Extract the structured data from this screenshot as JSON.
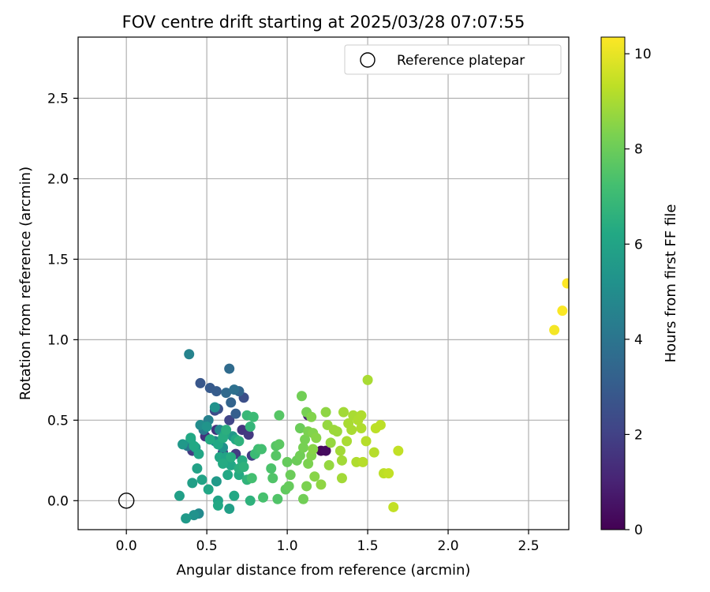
{
  "chart_data": {
    "type": "scatter",
    "title": "FOV centre drift starting at 2025/03/28 07:07:55",
    "xlabel": "Angular distance from reference (arcmin)",
    "ylabel": "Rotation from reference (arcmin)",
    "xlim": [
      -0.3,
      2.75
    ],
    "ylim": [
      -0.18,
      2.88
    ],
    "xticks": [
      0.0,
      0.5,
      1.0,
      1.5,
      2.0,
      2.5
    ],
    "yticks": [
      0.0,
      0.5,
      1.0,
      1.5,
      2.0,
      2.5
    ],
    "grid": true,
    "legend": {
      "position": "upper-right",
      "entries": [
        "Reference platepar"
      ]
    },
    "reference_point": {
      "x": 0.0,
      "y": 0.0
    },
    "colorbar": {
      "label": "Hours from first FF file",
      "colormap": "viridis",
      "range": [
        0,
        10.35
      ],
      "ticks": [
        0,
        2,
        4,
        6,
        8,
        10
      ]
    },
    "points": [
      [
        1.21,
        0.31,
        0.2
      ],
      [
        1.24,
        0.31,
        0.3
      ],
      [
        1.13,
        0.53,
        1.0
      ],
      [
        0.56,
        0.44,
        1.5
      ],
      [
        0.49,
        0.4,
        1.5
      ],
      [
        0.72,
        0.44,
        1.6
      ],
      [
        0.76,
        0.41,
        1.7
      ],
      [
        0.41,
        0.31,
        1.8
      ],
      [
        0.68,
        0.29,
        1.8
      ],
      [
        0.6,
        0.3,
        1.9
      ],
      [
        0.78,
        0.28,
        1.9
      ],
      [
        0.64,
        0.5,
        2.1
      ],
      [
        0.55,
        0.56,
        2.3
      ],
      [
        0.73,
        0.64,
        2.5
      ],
      [
        0.57,
        0.57,
        2.6
      ],
      [
        0.46,
        0.73,
        2.8
      ],
      [
        0.52,
        0.7,
        2.9
      ],
      [
        0.56,
        0.68,
        3.0
      ],
      [
        0.68,
        0.54,
        3.1
      ],
      [
        0.65,
        0.61,
        3.3
      ],
      [
        0.7,
        0.68,
        3.4
      ],
      [
        0.62,
        0.67,
        3.5
      ],
      [
        0.64,
        0.82,
        3.6
      ],
      [
        0.67,
        0.69,
        3.8
      ],
      [
        0.38,
        0.34,
        4.0
      ],
      [
        0.39,
        0.91,
        4.6
      ],
      [
        0.48,
        0.44,
        4.2
      ],
      [
        0.51,
        0.5,
        4.5
      ],
      [
        0.55,
        0.37,
        4.6
      ],
      [
        0.58,
        0.44,
        4.8
      ],
      [
        0.46,
        0.47,
        5.0
      ],
      [
        0.6,
        0.33,
        5.2
      ],
      [
        0.35,
        0.35,
        5.5
      ],
      [
        0.43,
        0.33,
        5.6
      ],
      [
        0.4,
        0.38,
        5.4
      ],
      [
        0.5,
        0.46,
        5.3
      ],
      [
        0.55,
        0.58,
        5.2
      ],
      [
        0.66,
        0.4,
        5.4
      ],
      [
        0.45,
        -0.08,
        4.9
      ],
      [
        0.42,
        -0.09,
        5.2
      ],
      [
        0.37,
        -0.11,
        5.6
      ],
      [
        0.33,
        0.03,
        5.8
      ],
      [
        0.56,
        0.12,
        5.6
      ],
      [
        0.41,
        0.11,
        5.8
      ],
      [
        0.44,
        0.2,
        5.9
      ],
      [
        0.47,
        0.13,
        6.0
      ],
      [
        0.51,
        0.07,
        6.1
      ],
      [
        0.57,
        0.0,
        6.0
      ],
      [
        0.57,
        -0.03,
        6.2
      ],
      [
        0.64,
        -0.05,
        5.8
      ],
      [
        0.67,
        0.03,
        6.2
      ],
      [
        0.58,
        0.27,
        6.1
      ],
      [
        0.62,
        0.27,
        6.0
      ],
      [
        0.63,
        0.16,
        6.2
      ],
      [
        0.65,
        0.22,
        6.1
      ],
      [
        0.7,
        0.16,
        6.3
      ],
      [
        0.68,
        0.38,
        6.2
      ],
      [
        0.61,
        0.41,
        6.1
      ],
      [
        0.57,
        0.35,
        6.2
      ],
      [
        0.6,
        0.23,
        6.3
      ],
      [
        0.65,
        0.27,
        6.4
      ],
      [
        0.72,
        0.25,
        6.4
      ],
      [
        0.7,
        0.2,
        6.5
      ],
      [
        0.45,
        0.29,
        6.1
      ],
      [
        0.42,
        0.34,
        6.2
      ],
      [
        0.52,
        0.38,
        6.3
      ],
      [
        0.4,
        0.39,
        6.2
      ],
      [
        0.6,
        0.39,
        6.4
      ],
      [
        0.62,
        0.44,
        6.5
      ],
      [
        0.7,
        0.37,
        6.6
      ],
      [
        0.73,
        0.21,
        6.6
      ],
      [
        0.75,
        0.13,
        6.7
      ],
      [
        0.77,
        0.46,
        6.8
      ],
      [
        0.77,
        0.0,
        6.6
      ],
      [
        0.75,
        0.53,
        6.9
      ],
      [
        0.79,
        0.52,
        7.0
      ],
      [
        0.8,
        0.29,
        7.0
      ],
      [
        0.82,
        0.32,
        7.1
      ],
      [
        0.78,
        0.14,
        7.2
      ],
      [
        0.84,
        0.32,
        7.2
      ],
      [
        0.85,
        0.02,
        7.3
      ],
      [
        0.9,
        0.2,
        7.4
      ],
      [
        0.91,
        0.14,
        7.5
      ],
      [
        0.93,
        0.34,
        7.6
      ],
      [
        0.93,
        0.28,
        7.6
      ],
      [
        0.94,
        0.01,
        7.5
      ],
      [
        0.95,
        0.53,
        7.6
      ],
      [
        0.95,
        0.35,
        7.7
      ],
      [
        0.99,
        0.07,
        7.8
      ],
      [
        1.0,
        0.24,
        7.9
      ],
      [
        1.01,
        0.09,
        7.9
      ],
      [
        1.02,
        0.16,
        8.0
      ],
      [
        1.06,
        0.25,
        8.0
      ],
      [
        1.08,
        0.28,
        8.1
      ],
      [
        1.08,
        0.45,
        8.0
      ],
      [
        1.09,
        0.65,
        8.1
      ],
      [
        1.1,
        0.01,
        8.1
      ],
      [
        1.1,
        0.33,
        8.2
      ],
      [
        1.11,
        0.38,
        8.2
      ],
      [
        1.12,
        0.09,
        8.3
      ],
      [
        1.12,
        0.55,
        8.2
      ],
      [
        1.13,
        0.23,
        8.3
      ],
      [
        1.13,
        0.43,
        8.3
      ],
      [
        1.15,
        0.52,
        8.4
      ],
      [
        1.15,
        0.28,
        8.4
      ],
      [
        1.16,
        0.42,
        8.4
      ],
      [
        1.16,
        0.32,
        8.5
      ],
      [
        1.17,
        0.15,
        8.5
      ],
      [
        1.18,
        0.39,
        8.5
      ],
      [
        1.21,
        0.1,
        8.6
      ],
      [
        1.24,
        0.55,
        8.6
      ],
      [
        1.25,
        0.47,
        8.7
      ],
      [
        1.26,
        0.22,
        8.7
      ],
      [
        1.27,
        0.36,
        8.7
      ],
      [
        1.29,
        0.44,
        8.8
      ],
      [
        1.31,
        0.43,
        8.8
      ],
      [
        1.33,
        0.31,
        8.9
      ],
      [
        1.34,
        0.25,
        8.9
      ],
      [
        1.34,
        0.14,
        8.9
      ],
      [
        1.35,
        0.55,
        8.9
      ],
      [
        1.37,
        0.37,
        9.0
      ],
      [
        1.38,
        0.48,
        9.0
      ],
      [
        1.4,
        0.44,
        9.0
      ],
      [
        1.41,
        0.53,
        9.0
      ],
      [
        1.43,
        0.24,
        9.1
      ],
      [
        1.44,
        0.5,
        9.1
      ],
      [
        1.46,
        0.45,
        9.1
      ],
      [
        1.46,
        0.53,
        9.1
      ],
      [
        1.47,
        0.24,
        9.2
      ],
      [
        1.49,
        0.37,
        9.2
      ],
      [
        1.5,
        0.75,
        9.0
      ],
      [
        1.54,
        0.3,
        9.2
      ],
      [
        1.55,
        0.45,
        9.3
      ],
      [
        1.58,
        0.47,
        9.3
      ],
      [
        1.6,
        0.17,
        9.3
      ],
      [
        1.63,
        0.17,
        9.4
      ],
      [
        1.66,
        -0.04,
        9.4
      ],
      [
        1.69,
        0.31,
        9.4
      ],
      [
        2.66,
        1.06,
        10.2
      ],
      [
        2.71,
        1.18,
        10.3
      ],
      [
        2.74,
        1.35,
        10.35
      ]
    ]
  }
}
